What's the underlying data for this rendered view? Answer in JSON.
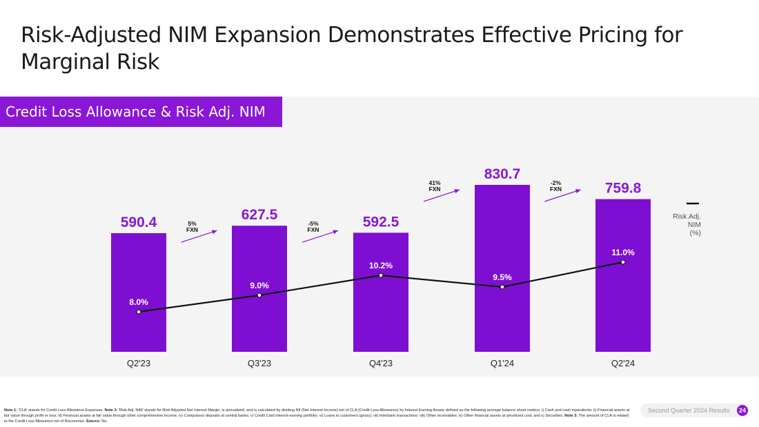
{
  "page": {
    "title": "Risk-Adjusted NIM Expansion Demonstrates Effective Pricing for Marginal Risk",
    "section_label": "Credit Loss Allowance & Risk Adj. NIM",
    "report_label": "Second Quarter 2024 Results",
    "page_number": "24"
  },
  "footnote": {
    "segments": [
      {
        "bold": true,
        "text": "Note 1: "
      },
      {
        "bold": false,
        "text": "'CLA' stands for Credit Loss Allowance Expenses. "
      },
      {
        "bold": true,
        "text": "Note 2: "
      },
      {
        "bold": false,
        "text": "'Risk Adj. NIM' stands for Risk Adjusted Net Interest Margin, is annualized, and is calculated by dividing NII (Net Interest Income) net of CLA (Credit Loss Allowance) by Interest Earning Assets defined as the following average balance sheet metrics: i) Cash and cash equivalents; ii) Financial assets at fair value through profit or loss; iii) Financial assets at fair value through other comprehensive income; iv) Compulsory deposits at central banks; v) Credit Card interest-earning portfolio; vi) Loans to customers (gross); vii) Interbank transactions; viii) Other receivables; ix) Other financial assets at amortized cost; and x) Securities. "
      },
      {
        "bold": true,
        "text": "Note 3: "
      },
      {
        "bold": false,
        "text": "The amount of CLA is related to the Credit Loss Allowance net of Recoveries. "
      },
      {
        "bold": true,
        "text": "Source: "
      },
      {
        "bold": false,
        "text": "Nu."
      }
    ]
  },
  "colors": {
    "bar": "#7e0fd2",
    "bar_label": "#8a17d5",
    "arrow": "#8a17d5",
    "line": "#111111",
    "panel": "#f4f4f4"
  },
  "chart_data": {
    "type": "bar",
    "categories": [
      "Q2'23",
      "Q3'23",
      "Q4'23",
      "Q1'24",
      "Q2'24"
    ],
    "values": [
      590.4,
      627.5,
      592.5,
      830.7,
      759.8
    ],
    "value_labels": [
      "590.4",
      "627.5",
      "592.5",
      "830.7",
      "759.8"
    ],
    "ylim": [
      0,
      830.7
    ],
    "series": [
      {
        "type": "line",
        "values": [
          8.0,
          9.0,
          10.2,
          9.5,
          11.0
        ],
        "labels": [
          "8.0%",
          "9.0%",
          "10.2%",
          "9.5%",
          "11.0%"
        ],
        "ylim": [
          0,
          12
        ]
      }
    ],
    "growth_annotations": [
      {
        "pct": "5%",
        "unit": "FXN"
      },
      {
        "pct": "-5%",
        "unit": "FXN"
      },
      {
        "pct": "41%",
        "unit": "FXN"
      },
      {
        "pct": "-2%",
        "unit": "FXN"
      }
    ],
    "legend": {
      "line_label": [
        "Risk Adj.",
        "NIM",
        "(%)"
      ],
      "position": "right"
    },
    "grid": false
  }
}
